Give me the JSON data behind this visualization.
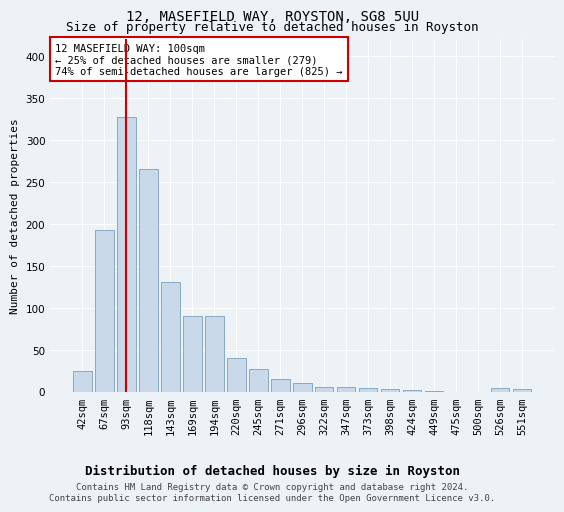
{
  "title": "12, MASEFIELD WAY, ROYSTON, SG8 5UU",
  "subtitle": "Size of property relative to detached houses in Royston",
  "xlabel": "Distribution of detached houses by size in Royston",
  "ylabel": "Number of detached properties",
  "bar_color": "#c9d9ea",
  "bar_edge_color": "#7aa0be",
  "bar_heights": [
    25,
    193,
    327,
    265,
    130,
    90,
    90,
    40,
    27,
    15,
    10,
    5,
    5,
    4,
    3,
    2,
    1,
    0,
    0,
    4,
    3
  ],
  "categories": [
    "42sqm",
    "67sqm",
    "93sqm",
    "118sqm",
    "143sqm",
    "169sqm",
    "194sqm",
    "220sqm",
    "245sqm",
    "271sqm",
    "296sqm",
    "322sqm",
    "347sqm",
    "373sqm",
    "398sqm",
    "424sqm",
    "449sqm",
    "475sqm",
    "500sqm",
    "526sqm",
    "551sqm"
  ],
  "ylim": [
    0,
    420
  ],
  "yticks": [
    0,
    50,
    100,
    150,
    200,
    250,
    300,
    350,
    400
  ],
  "vline_idx": 2,
  "vline_color": "#cc0000",
  "annotation_text": "12 MASEFIELD WAY: 100sqm\n← 25% of detached houses are smaller (279)\n74% of semi-detached houses are larger (825) →",
  "annotation_box_facecolor": "#ffffff",
  "annotation_box_edgecolor": "#cc0000",
  "footer_text": "Contains HM Land Registry data © Crown copyright and database right 2024.\nContains public sector information licensed under the Open Government Licence v3.0.",
  "bg_color": "#edf2f7",
  "grid_color": "#ffffff",
  "title_fontsize": 10,
  "subtitle_fontsize": 9,
  "xlabel_fontsize": 9,
  "ylabel_fontsize": 8,
  "tick_fontsize": 7.5,
  "annotation_fontsize": 7.5,
  "footer_fontsize": 6.5
}
